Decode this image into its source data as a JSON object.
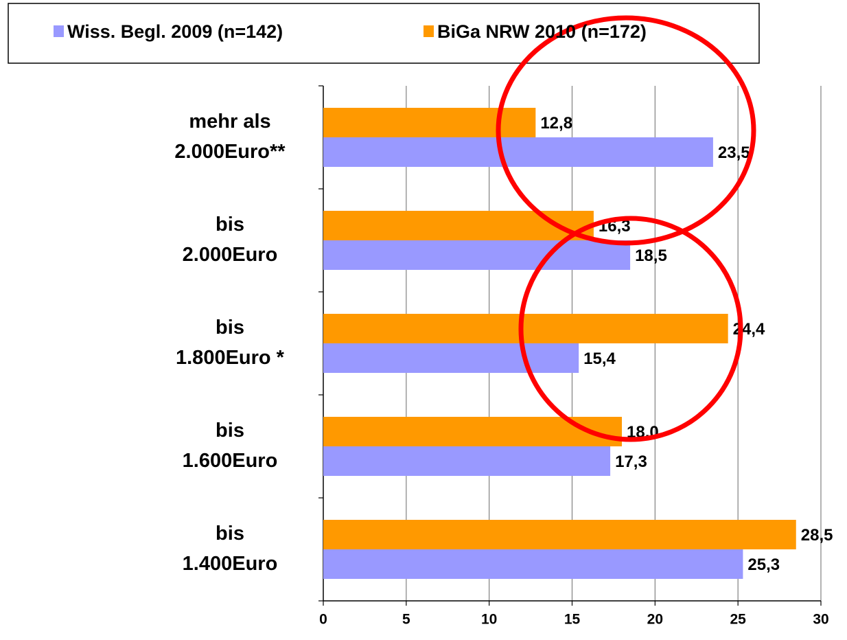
{
  "chart_data": {
    "type": "bar",
    "orientation": "horizontal",
    "categories": [
      "mehr als\n2.000Euro**",
      "bis\n2.000Euro",
      "bis\n1.800Euro *",
      "bis\n1.600Euro",
      "bis\n1.400Euro"
    ],
    "series": [
      {
        "name": "Wiss. Begl. 2009 (n=142)",
        "color": "#9999ff",
        "values": [
          23.5,
          18.5,
          15.4,
          17.3,
          25.3
        ],
        "value_labels": [
          "23,5",
          "18,5",
          "15,4",
          "17,3",
          "25,3"
        ]
      },
      {
        "name": "BiGa NRW 2010 (n=172)",
        "color": "#ff9900",
        "values": [
          12.8,
          16.3,
          24.4,
          18.0,
          28.5
        ],
        "value_labels": [
          "12,8",
          "16,3",
          "24,4",
          "18,0",
          "28,5"
        ]
      }
    ],
    "xlim": [
      0,
      30
    ],
    "xticks": [
      0,
      5,
      10,
      15,
      20,
      25,
      30
    ],
    "grid": true,
    "legend": "top"
  }
}
